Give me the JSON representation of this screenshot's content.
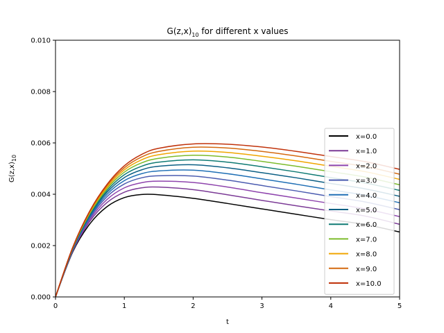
{
  "chart_data": {
    "type": "line",
    "title": {
      "main": "G(z,x)",
      "sub": "10",
      "suffix": " for different x values"
    },
    "xlabel": "t",
    "ylabel": {
      "main": "G(z,x)",
      "sub": "10"
    },
    "xlim": [
      0,
      5
    ],
    "ylim": [
      0,
      0.01
    ],
    "x_ticks": [
      0,
      1,
      2,
      3,
      4,
      5
    ],
    "x_tick_labels": [
      "0",
      "1",
      "2",
      "3",
      "4",
      "5"
    ],
    "y_ticks": [
      0,
      0.002,
      0.004,
      0.006,
      0.008,
      0.01
    ],
    "y_tick_labels": [
      "0.000",
      "0.002",
      "0.004",
      "0.006",
      "0.008",
      "0.010"
    ],
    "grid": false,
    "legend_position": "center-right",
    "x": [
      0,
      0.25,
      0.5,
      0.75,
      1,
      1.25,
      1.5,
      2,
      2.5,
      3,
      3.5,
      4,
      4.5,
      5
    ],
    "series": [
      {
        "name": "x=0.0",
        "color": "#000000",
        "values": [
          0,
          0.00175,
          0.00285,
          0.00352,
          0.00387,
          0.00399,
          0.00398,
          0.00384,
          0.00364,
          0.00343,
          0.00322,
          0.00301,
          0.00282,
          0.00253
        ]
      },
      {
        "name": "x=1.0",
        "color": "#7b3a96",
        "values": [
          0,
          0.00178,
          0.00295,
          0.00368,
          0.00408,
          0.00425,
          0.00428,
          0.00418,
          0.00398,
          0.00376,
          0.00355,
          0.00335,
          0.00315,
          0.00283
        ]
      },
      {
        "name": "x=2.0",
        "color": "#8e44ad",
        "values": [
          0,
          0.0018,
          0.00302,
          0.0038,
          0.00425,
          0.00445,
          0.00451,
          0.00446,
          0.00428,
          0.00406,
          0.00385,
          0.00364,
          0.00343,
          0.00313
        ]
      },
      {
        "name": "x=3.0",
        "color": "#4b5cb0",
        "values": [
          0,
          0.00182,
          0.00308,
          0.00391,
          0.0044,
          0.00464,
          0.00472,
          0.00471,
          0.00455,
          0.00434,
          0.00413,
          0.00391,
          0.0037,
          0.0034
        ]
      },
      {
        "name": "x=4.0",
        "color": "#1f6fb5",
        "values": [
          0,
          0.00184,
          0.00313,
          0.004,
          0.00453,
          0.0048,
          0.00491,
          0.00494,
          0.0048,
          0.0046,
          0.00439,
          0.00417,
          0.00396,
          0.00367
        ]
      },
      {
        "name": "x=5.0",
        "color": "#0b5f84",
        "values": [
          0,
          0.00186,
          0.00318,
          0.00408,
          0.00465,
          0.00495,
          0.00509,
          0.00515,
          0.00503,
          0.00484,
          0.00464,
          0.00442,
          0.00421,
          0.00392
        ]
      },
      {
        "name": "x=6.0",
        "color": "#0f7a73",
        "values": [
          0,
          0.00188,
          0.00322,
          0.00415,
          0.00476,
          0.00509,
          0.00525,
          0.00534,
          0.00525,
          0.00507,
          0.00487,
          0.00465,
          0.00444,
          0.00415
        ]
      },
      {
        "name": "x=7.0",
        "color": "#7cbb2b",
        "values": [
          0,
          0.0019,
          0.00326,
          0.00422,
          0.00486,
          0.00522,
          0.0054,
          0.00552,
          0.00545,
          0.00528,
          0.00509,
          0.00488,
          0.00467,
          0.00437
        ]
      },
      {
        "name": "x=8.0",
        "color": "#f0a500",
        "values": [
          0,
          0.00191,
          0.0033,
          0.00428,
          0.00495,
          0.00534,
          0.00554,
          0.00568,
          0.00563,
          0.00548,
          0.0053,
          0.00509,
          0.00488,
          0.00458
        ]
      },
      {
        "name": "x=9.0",
        "color": "#d4690f",
        "values": [
          0,
          0.00192,
          0.00333,
          0.00434,
          0.00503,
          0.00545,
          0.00567,
          0.00583,
          0.0058,
          0.00567,
          0.00549,
          0.00528,
          0.00508,
          0.00478
        ]
      },
      {
        "name": "x=10.0",
        "color": "#c0320a",
        "values": [
          0,
          0.00193,
          0.00336,
          0.00439,
          0.00511,
          0.00555,
          0.00579,
          0.00596,
          0.00595,
          0.00584,
          0.00567,
          0.00547,
          0.00527,
          0.00497
        ]
      }
    ]
  }
}
